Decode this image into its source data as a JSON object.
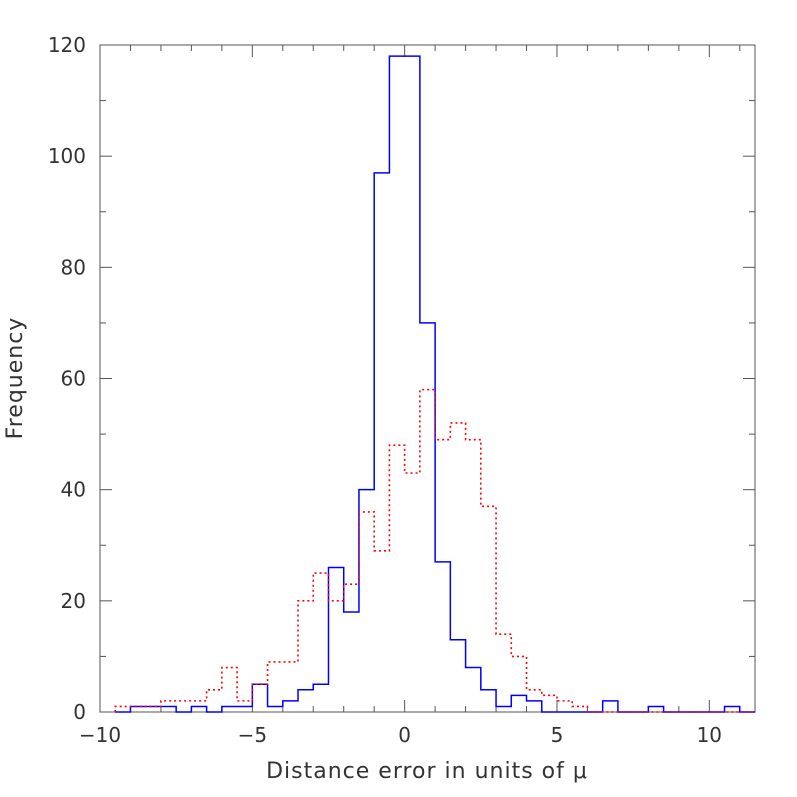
{
  "chart_data": {
    "type": "histogram",
    "xlabel": "Distance error in units of μ",
    "ylabel": "Frequency",
    "xlim": [
      -10,
      11.5
    ],
    "ylim": [
      0,
      120
    ],
    "x_ticks": [
      -10,
      -5,
      0,
      5,
      10
    ],
    "x_tick_labels": [
      "−10",
      "−5",
      "0",
      "5",
      "10"
    ],
    "y_ticks": [
      0,
      20,
      40,
      60,
      80,
      100,
      120
    ],
    "y_tick_labels": [
      "0",
      "20",
      "40",
      "60",
      "80",
      "100",
      "120"
    ],
    "grid": false,
    "bin_edges": [
      -9.5,
      -9.0,
      -8.5,
      -8.0,
      -7.5,
      -7.0,
      -6.5,
      -6.0,
      -5.5,
      -5.0,
      -4.5,
      -4.0,
      -3.5,
      -3.0,
      -2.5,
      -2.0,
      -1.5,
      -1.0,
      -0.5,
      0.0,
      0.5,
      1.0,
      1.5,
      2.0,
      2.5,
      3.0,
      3.5,
      4.0,
      4.5,
      5.0,
      5.5,
      6.0,
      6.5,
      7.0,
      7.5,
      8.0,
      8.5,
      9.0,
      9.5,
      10.0,
      10.5,
      11.0,
      11.5
    ],
    "series": [
      {
        "color": "#0000ff",
        "linestyle": "solid",
        "values": [
          0,
          1,
          1,
          1,
          0,
          1,
          0,
          1,
          1,
          5,
          1,
          2,
          4,
          5,
          26,
          18,
          40,
          97,
          118,
          118,
          70,
          27,
          13,
          8,
          4,
          1,
          3,
          2,
          0,
          0,
          0,
          0,
          2,
          0,
          0,
          1,
          0,
          0,
          0,
          0,
          1,
          0
        ]
      },
      {
        "color": "#ff0000",
        "linestyle": "dotted",
        "values": [
          1,
          1,
          1,
          2,
          2,
          2,
          4,
          8,
          2,
          5,
          9,
          9,
          20,
          25,
          20,
          23,
          36,
          29,
          48,
          43,
          58,
          49,
          52,
          49,
          37,
          14,
          10,
          4,
          3,
          2,
          1,
          0,
          0,
          0,
          0,
          0,
          0,
          0,
          0,
          0,
          0,
          0
        ]
      }
    ]
  }
}
